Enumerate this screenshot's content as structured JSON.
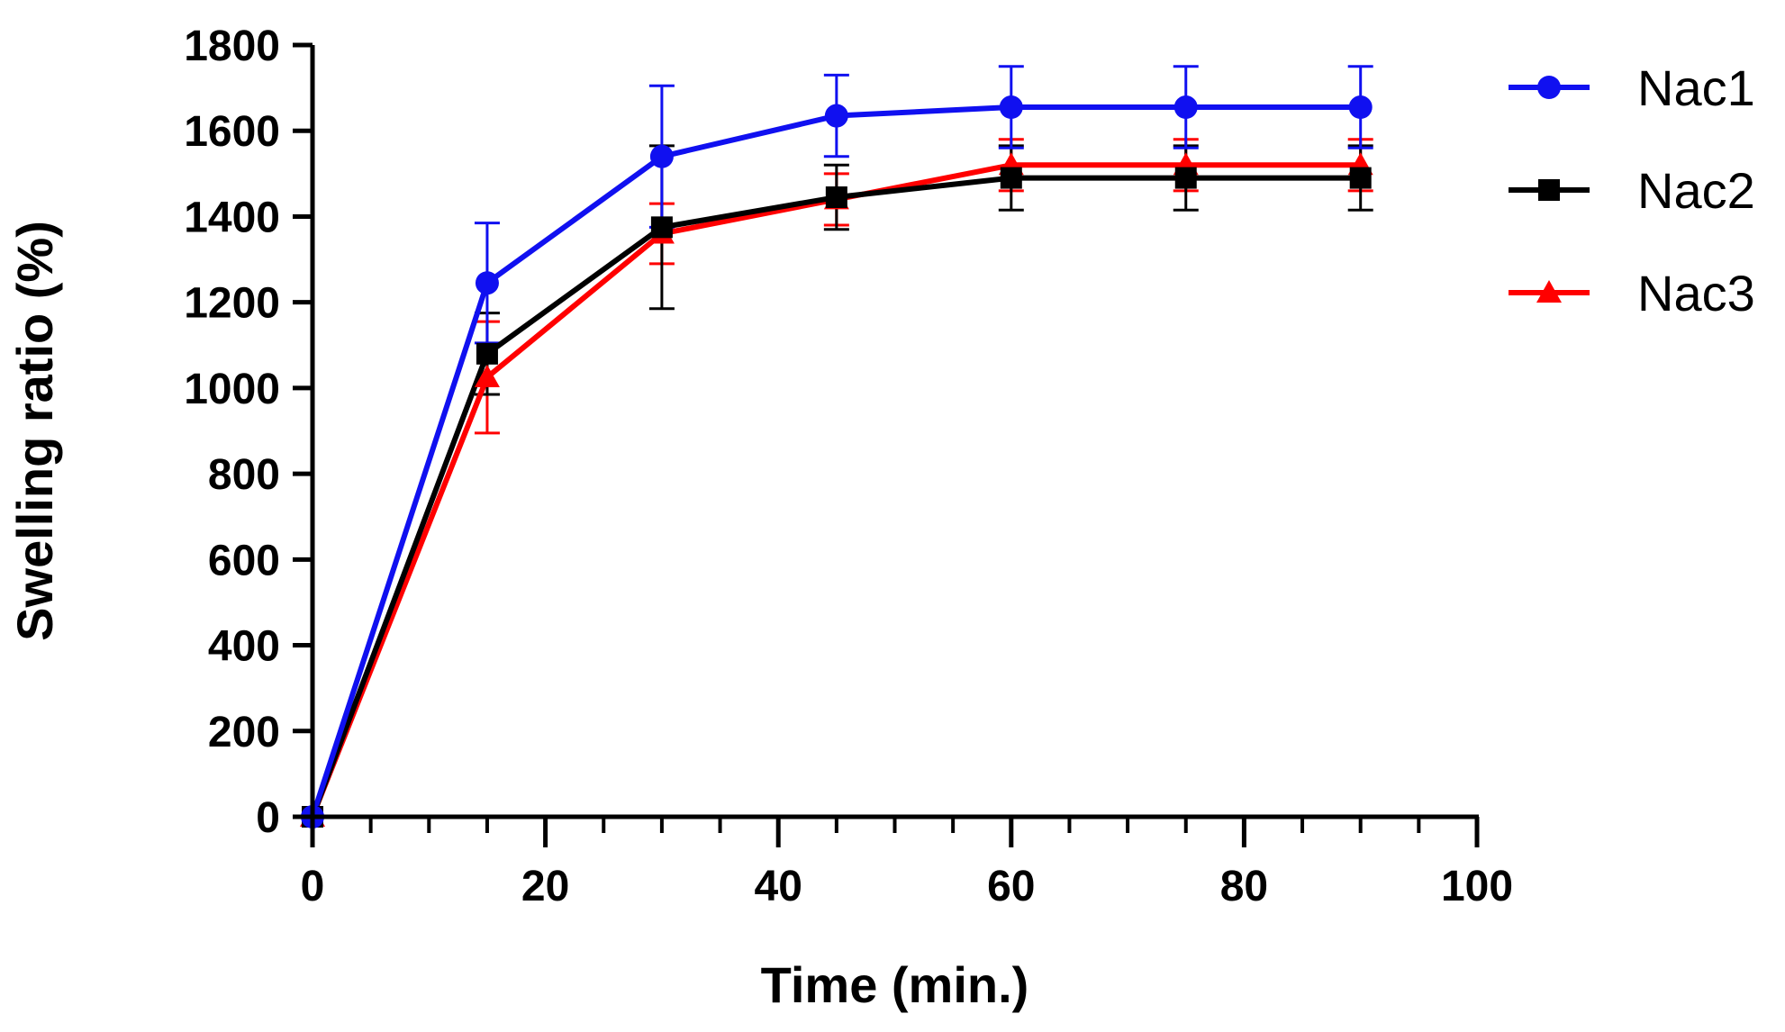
{
  "chart_data": {
    "type": "line",
    "title": "",
    "xlabel": "Time (min.)",
    "ylabel": "Swelling ratio (%)",
    "xlim": [
      0,
      100
    ],
    "ylim": [
      0,
      1800
    ],
    "x_ticks": [
      "0",
      "20",
      "40",
      "60",
      "80",
      "100"
    ],
    "y_ticks": [
      "0",
      "200",
      "400",
      "600",
      "800",
      "1000",
      "1200",
      "1400",
      "1600",
      "1800"
    ],
    "x_minor_step": 5,
    "grid": false,
    "legend_position": "top-right",
    "x": [
      0,
      15,
      30,
      45,
      60,
      75,
      90
    ],
    "series": [
      {
        "name": "Nac1",
        "color": "#1010f0",
        "marker": "circle",
        "values": [
          0,
          1245,
          1540,
          1635,
          1655,
          1655,
          1655
        ],
        "errors": [
          0,
          140,
          165,
          95,
          95,
          95,
          95
        ]
      },
      {
        "name": "Nac2",
        "color": "#000000",
        "marker": "square",
        "values": [
          0,
          1080,
          1375,
          1445,
          1490,
          1490,
          1490
        ],
        "errors": [
          0,
          95,
          190,
          75,
          75,
          75,
          75
        ]
      },
      {
        "name": "Nac3",
        "color": "#ff0000",
        "marker": "triangle",
        "values": [
          0,
          1025,
          1360,
          1440,
          1520,
          1520,
          1520
        ],
        "errors": [
          0,
          130,
          70,
          60,
          60,
          60,
          60
        ]
      }
    ]
  }
}
